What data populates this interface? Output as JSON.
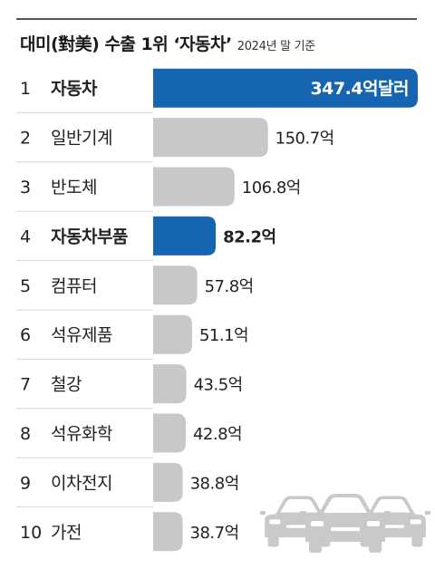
{
  "chart_data": {
    "type": "bar",
    "orientation": "horizontal",
    "title": "대미(對美) 수출 1위 ‘자동차’",
    "subtitle": "2024년 말 기준",
    "ranks": [
      "1",
      "2",
      "3",
      "4",
      "5",
      "6",
      "7",
      "8",
      "9",
      "10"
    ],
    "categories": [
      "자동차",
      "일반기계",
      "반도체",
      "자동차부품",
      "컴퓨터",
      "석유제품",
      "철강",
      "석유화학",
      "이차전지",
      "가전"
    ],
    "values": [
      347.4,
      150.7,
      106.8,
      82.2,
      57.8,
      51.1,
      43.5,
      42.8,
      38.8,
      38.7
    ],
    "value_labels": [
      "347.4억달러",
      "150.7억",
      "106.8억",
      "82.2억",
      "57.8억",
      "51.1억",
      "43.5억",
      "42.8억",
      "38.8억",
      "38.7억"
    ],
    "highlighted": [
      "자동차",
      "자동차부품"
    ],
    "colors": {
      "highlight": "#1565b0",
      "default": "#c8c8ca",
      "text": "#222222",
      "rule": "#555555",
      "row_rule": "#d6d6d6",
      "icon": "#c9c9cb"
    },
    "icon": "cars-illustration-icon"
  }
}
